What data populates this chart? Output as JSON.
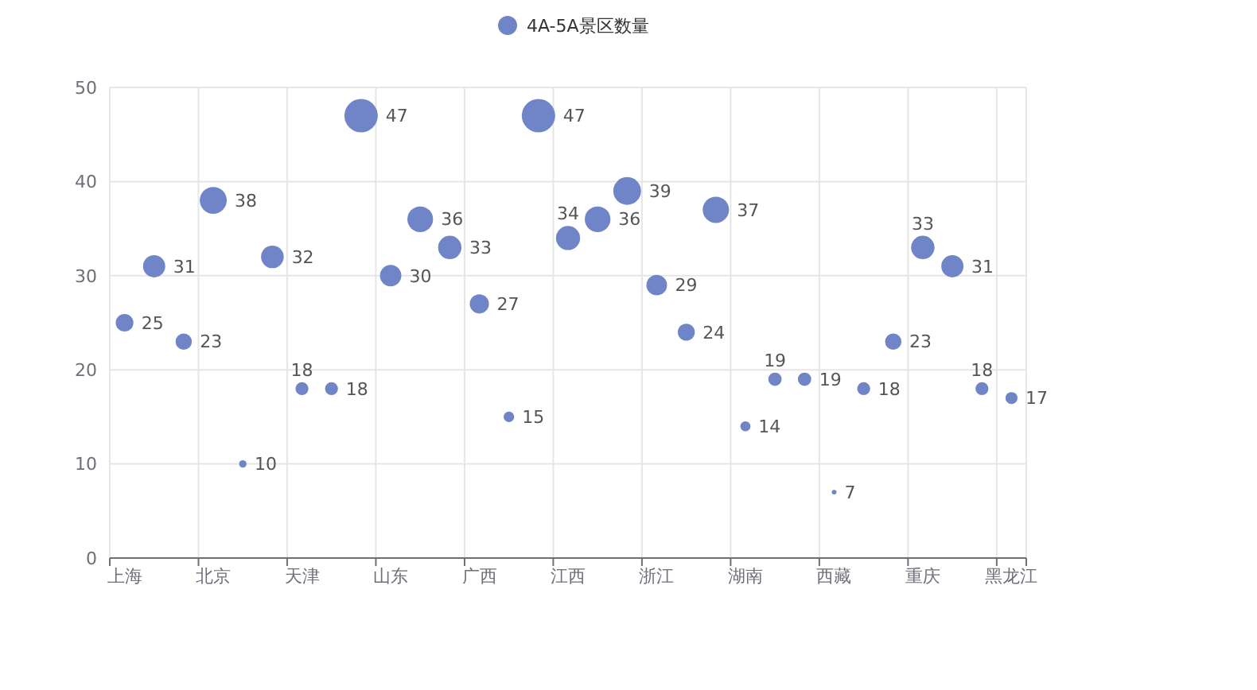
{
  "chart_data": {
    "type": "bubble",
    "categories": [
      "上海",
      null,
      null,
      "北京",
      null,
      null,
      "天津",
      null,
      null,
      "山东",
      null,
      null,
      "广西",
      null,
      null,
      "江西",
      null,
      null,
      "浙江",
      null,
      null,
      "湖南",
      null,
      null,
      "西藏",
      null,
      null,
      "重庆",
      null,
      null,
      "黑龙江"
    ],
    "series": [
      {
        "name": "4A-5A景区数量",
        "color": "#7085c8",
        "values": [
          25,
          31,
          23,
          38,
          10,
          32,
          18,
          18,
          47,
          30,
          36,
          33,
          27,
          15,
          47,
          34,
          36,
          39,
          29,
          24,
          37,
          14,
          19,
          19,
          7,
          18,
          23,
          33,
          31,
          18,
          17
        ],
        "sizes": [
          0.28,
          0.44,
          0.24,
          0.65,
          0.05,
          0.46,
          0.15,
          0.15,
          1,
          0.41,
          0.59,
          0.49,
          0.33,
          0.1,
          1,
          0.52,
          0.59,
          0.69,
          0.38,
          0.26,
          0.62,
          0.09,
          0.16,
          0.16,
          0.02,
          0.15,
          0.24,
          0.49,
          0.44,
          0.15,
          0.13
        ]
      }
    ],
    "ylim": [
      0,
      50
    ],
    "yticks": [
      0,
      10,
      20,
      30,
      40,
      50
    ],
    "grid": true,
    "legend": "top",
    "data_labels": true,
    "marker": "circle"
  }
}
